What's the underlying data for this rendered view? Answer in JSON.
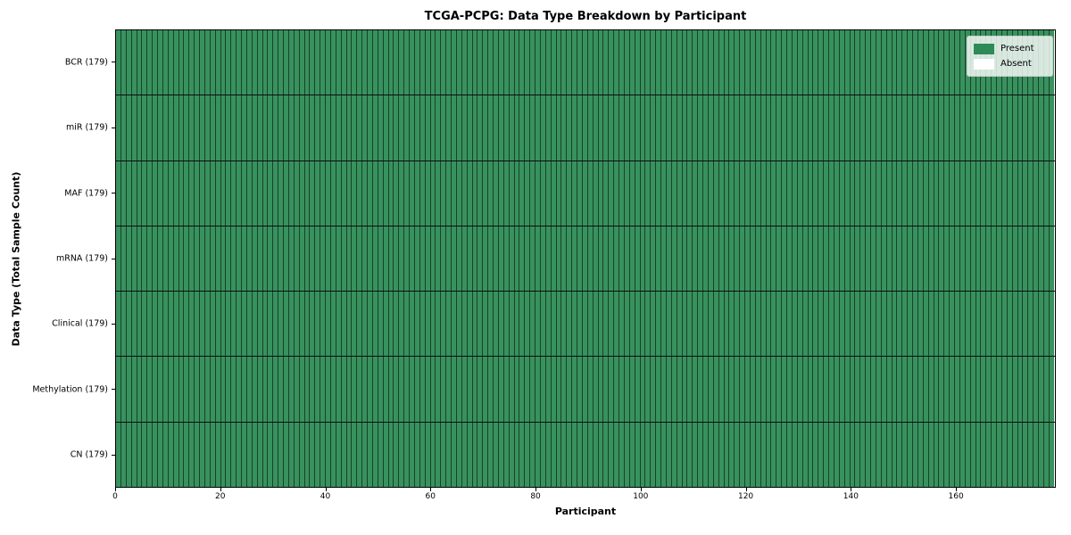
{
  "chart_data": {
    "type": "heatmap",
    "title": "TCGA-PCPG: Data Type Breakdown by Participant",
    "xlabel": "Participant",
    "ylabel": "Data Type (Total Sample Count)",
    "participants": 179,
    "xlim": [
      0,
      179
    ],
    "x_ticks": [
      0,
      20,
      40,
      60,
      80,
      100,
      120,
      140,
      160
    ],
    "rows": [
      {
        "label": "BCR (179)",
        "data_type": "BCR",
        "total": 179,
        "present": 179,
        "absent": 0
      },
      {
        "label": "miR (179)",
        "data_type": "miR",
        "total": 179,
        "present": 179,
        "absent": 0
      },
      {
        "label": "MAF (179)",
        "data_type": "MAF",
        "total": 179,
        "present": 179,
        "absent": 0
      },
      {
        "label": "mRNA (179)",
        "data_type": "mRNA",
        "total": 179,
        "present": 179,
        "absent": 0
      },
      {
        "label": "Clinical (179)",
        "data_type": "Clinical",
        "total": 179,
        "present": 179,
        "absent": 0
      },
      {
        "label": "Methylation (179)",
        "data_type": "Methylation",
        "total": 179,
        "present": 179,
        "absent": 0
      },
      {
        "label": "CN (179)",
        "data_type": "CN",
        "total": 179,
        "present": 179,
        "absent": 0
      }
    ],
    "legend": [
      {
        "label": "Present",
        "color": "#2E8B57"
      },
      {
        "label": "Absent",
        "color": "#FFFFFF"
      }
    ],
    "legend_position": "upper right",
    "grid": false,
    "colors": {
      "present_cell": "#38925E",
      "absent_cell": "#FFFFFF",
      "cell_edge": "rgba(0,0,0,0.55)",
      "row_separator": "#0d0d0d",
      "axis_spine": "#000000"
    }
  }
}
